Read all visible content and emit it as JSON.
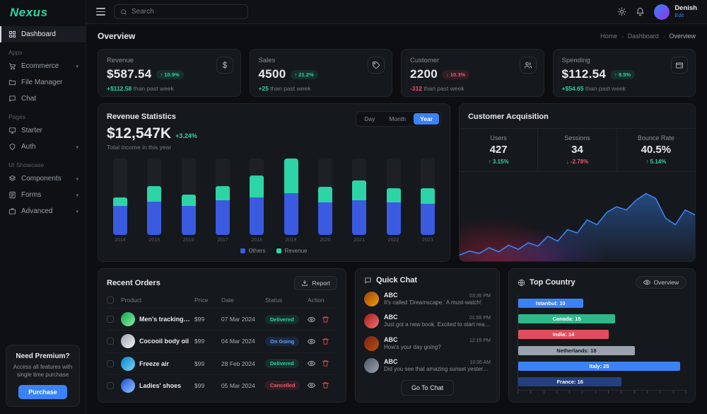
{
  "brand": {
    "name": "Nexus",
    "accent": "#2dd4a6"
  },
  "sidebar": {
    "items": [
      {
        "label": "Dashboard"
      },
      {
        "label": "Ecommerce"
      },
      {
        "label": "File Manager"
      },
      {
        "label": "Chat"
      },
      {
        "label": "Starter"
      },
      {
        "label": "Auth"
      },
      {
        "label": "Components"
      },
      {
        "label": "Forms"
      },
      {
        "label": "Advanced"
      }
    ],
    "section_labels": [
      "Apps",
      "Pages",
      "UI Showcase"
    ],
    "premium": {
      "title": "Need Premium?",
      "description": "Access all features with single time purchase",
      "button": "Purchase"
    }
  },
  "header": {
    "search_placeholder": "Search",
    "user": {
      "name": "Denish",
      "action": "Edit"
    }
  },
  "page": {
    "title": "Overview",
    "breadcrumb": [
      "Home",
      "Dashboard",
      "Overview"
    ]
  },
  "stats": [
    {
      "label": "Revenue",
      "value": "$587.54",
      "badge": "↑ 10.9%",
      "delta": "+$112.58",
      "note": "than past week",
      "icon": "dollar"
    },
    {
      "label": "Sales",
      "value": "4500",
      "badge": "↑ 21.2%",
      "delta": "+25",
      "note": "than past week",
      "icon": "tag"
    },
    {
      "label": "Customer",
      "value": "2200",
      "badge": "↓ 10.3%",
      "delta": "-312",
      "note": "than past week",
      "icon": "users"
    },
    {
      "label": "Spending",
      "value": "$112.54",
      "badge": "↑ 8.5%",
      "delta": "+$54.65",
      "note": "than past week",
      "icon": "wallet"
    }
  ],
  "revenue_stats": {
    "title": "Revenue Statistics",
    "value": "$12,547K",
    "change": "+3.24%",
    "subtitle": "Total income in this year",
    "tabs": [
      "Day",
      "Month",
      "Year"
    ],
    "active_tab": "Year"
  },
  "acquisition": {
    "title": "Customer Acquisition",
    "metrics": [
      {
        "label": "Users",
        "value": "427",
        "change": "↑ 3.15%",
        "dir": "up"
      },
      {
        "label": "Sessions",
        "value": "34",
        "change": "↓ -2.78%",
        "dir": "down"
      },
      {
        "label": "Bounce Rate",
        "value": "40.5%",
        "change": "↑ 5.14%",
        "dir": "up"
      }
    ]
  },
  "orders": {
    "title": "Recent Orders",
    "report_button": "Report",
    "columns": [
      "Product",
      "Price",
      "Date",
      "Status",
      "Action"
    ],
    "rows": [
      {
        "product": "Men's tracking shoes",
        "price": "$99",
        "date": "07 Mar 2024",
        "status": "Delivered",
        "status_type": "success",
        "icon_color": "linear-gradient(135deg,#16a34a,#86efac)"
      },
      {
        "product": "Cocooil body oil",
        "price": "$99",
        "date": "04 Mar 2024",
        "status": "On Going",
        "status_type": "info",
        "icon_color": "linear-gradient(135deg,#9ca3af,#f3f4f6)"
      },
      {
        "product": "Freeze air",
        "price": "$99",
        "date": "28 Feb 2024",
        "status": "Delivered",
        "status_type": "success",
        "icon_color": "linear-gradient(135deg,#0284c7,#7dd3fc)"
      },
      {
        "product": "Ladies' shoes",
        "price": "$99",
        "date": "05 Mar 2024",
        "status": "Cancelled",
        "status_type": "danger",
        "icon_color": "linear-gradient(135deg,#1d4ed8,#93c5fd)"
      }
    ]
  },
  "chat": {
    "title": "Quick Chat",
    "messages": [
      {
        "name": "ABC",
        "time": "03:35 PM",
        "text": "It's called 'Dreamscape.' A must-watch!",
        "avatar_color": "linear-gradient(135deg,#92400e,#f59e0b)"
      },
      {
        "name": "ABC",
        "time": "01:55 PM",
        "text": "Just got a new book. Excited to start reading.",
        "avatar_color": "linear-gradient(135deg,#991b1b,#f87171)"
      },
      {
        "name": "ABC",
        "time": "12:15 PM",
        "text": "How's your day going?",
        "avatar_color": "linear-gradient(135deg,#7f1d1d,#b45309)"
      },
      {
        "name": "ABC",
        "time": "10:35 AM",
        "text": "Did you see that amazing sunset yesterday?",
        "avatar_color": "linear-gradient(135deg,#4b5563,#9ca3af)"
      }
    ],
    "button": "Go To Chat"
  },
  "top_country": {
    "title": "Top Country",
    "overview_button": "Overview"
  },
  "chart_data": [
    {
      "type": "bar",
      "name": "revenue-statistics",
      "stacked": true,
      "categories": [
        "2014",
        "2015",
        "2016",
        "2017",
        "2018",
        "2019",
        "2020",
        "2021",
        "2022",
        "2023"
      ],
      "series": [
        {
          "name": "Others",
          "color": "#3a5be0",
          "values": [
            40,
            46,
            40,
            48,
            52,
            58,
            45,
            48,
            45,
            43
          ]
        },
        {
          "name": "Revenue",
          "color": "#2dd4a6",
          "values": [
            12,
            22,
            16,
            20,
            30,
            48,
            22,
            28,
            20,
            22
          ]
        }
      ],
      "title": "Revenue Statistics",
      "xlabel": "",
      "ylabel": "",
      "legend_position": "bottom",
      "grid": false
    },
    {
      "type": "area",
      "name": "customer-acquisition",
      "color": "#3b82f6",
      "values": [
        3,
        8,
        5,
        12,
        7,
        15,
        10,
        18,
        14,
        26,
        20,
        34,
        30,
        46,
        40,
        55,
        62,
        58,
        70,
        78,
        72,
        48,
        40,
        58,
        52
      ],
      "ylim": [
        0,
        100
      ],
      "grid": false,
      "legend_position": "none"
    },
    {
      "type": "bar",
      "name": "top-country",
      "orientation": "horizontal",
      "bars": [
        {
          "label": "Istanbul: 10",
          "value": 10,
          "color": "#3b82f6",
          "text_color": "#ffffff"
        },
        {
          "label": "Canada: 15",
          "value": 15,
          "color": "#2eb88a",
          "text_color": "#ffffff"
        },
        {
          "label": "India: 14",
          "value": 14,
          "color": "#e14d5f",
          "text_color": "#ffffff"
        },
        {
          "label": "Netherlands: 18",
          "value": 18,
          "color": "#9aa3ad",
          "text_color": "#16181c"
        },
        {
          "label": "Italy: 25",
          "value": 25,
          "color": "#3b82f6",
          "text_color": "#ffffff"
        },
        {
          "label": "France: 16",
          "value": 16,
          "color": "#24407e",
          "text_color": "#ffffff"
        }
      ],
      "xlim": [
        0,
        26
      ],
      "grid": false
    }
  ]
}
